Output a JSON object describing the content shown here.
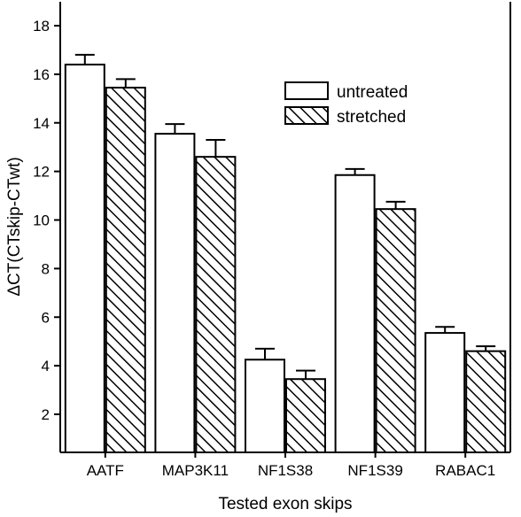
{
  "chart_data": {
    "type": "bar",
    "title": "",
    "xlabel": "Tested exon skips",
    "ylabel": "ΔCT(CTskip-CTwt)",
    "categories": [
      "AATF",
      "MAP3K11",
      "NF1S38",
      "NF1S39",
      "RABAC1"
    ],
    "series": [
      {
        "name": "untreated",
        "values": [
          16.4,
          13.55,
          4.25,
          11.85,
          5.35
        ],
        "errors": [
          0.4,
          0.4,
          0.45,
          0.25,
          0.25
        ],
        "fill": "plain"
      },
      {
        "name": "stretched",
        "values": [
          15.45,
          12.6,
          3.45,
          10.45,
          4.6
        ],
        "errors": [
          0.35,
          0.7,
          0.35,
          0.3,
          0.2
        ],
        "fill": "hatched"
      }
    ],
    "ylim": [
      0,
      19
    ],
    "yticks": [
      2,
      4,
      6,
      8,
      10,
      12,
      14,
      16,
      18
    ],
    "grid": false,
    "legend_position": "top-right"
  },
  "colors": {
    "bar_fill": "#ffffff",
    "bar_stroke": "#000000",
    "hatch": "#000000"
  }
}
